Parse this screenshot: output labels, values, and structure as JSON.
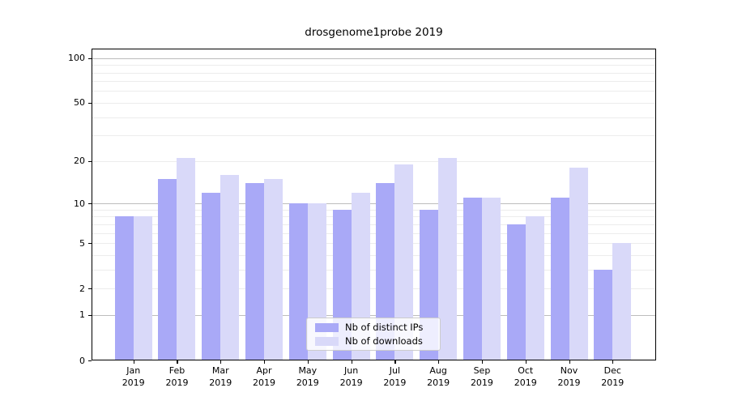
{
  "figure": {
    "title": "drosgenome1probe 2019",
    "colors": {
      "ips_bar": "#a9a9f7",
      "downloads_bar": "#d9d9f9",
      "grid_major": "#bdbdbd",
      "grid_minor": "#ececec",
      "spine": "#000000",
      "legend_border": "#cccccc"
    }
  },
  "chart_data": {
    "type": "bar",
    "title": "drosgenome1probe 2019",
    "categories": [
      "Jan",
      "Feb",
      "Mar",
      "Apr",
      "May",
      "Jun",
      "Jul",
      "Aug",
      "Sep",
      "Oct",
      "Nov",
      "Dec"
    ],
    "year_label": "2019",
    "series": [
      {
        "name": "Nb of distinct IPs",
        "color": "#a9a9f7",
        "values": [
          8,
          15,
          12,
          14,
          10,
          9,
          14,
          9,
          11,
          7,
          11,
          3
        ]
      },
      {
        "name": "Nb of downloads",
        "color": "#d9d9f9",
        "values": [
          8,
          21,
          16,
          15,
          10,
          12,
          19,
          21,
          11,
          8,
          18,
          5
        ]
      }
    ],
    "yscale": "log1p",
    "ylim": [
      0,
      116
    ],
    "yticks": [
      100,
      50,
      20,
      10,
      5,
      2,
      1,
      0
    ],
    "major_gridlines": [
      1,
      10,
      100
    ],
    "minor_gridlines": [
      2,
      3,
      4,
      5,
      6,
      7,
      8,
      9,
      20,
      30,
      40,
      50,
      60,
      70,
      80,
      90
    ],
    "grid": true,
    "legend_position": "lower center"
  }
}
